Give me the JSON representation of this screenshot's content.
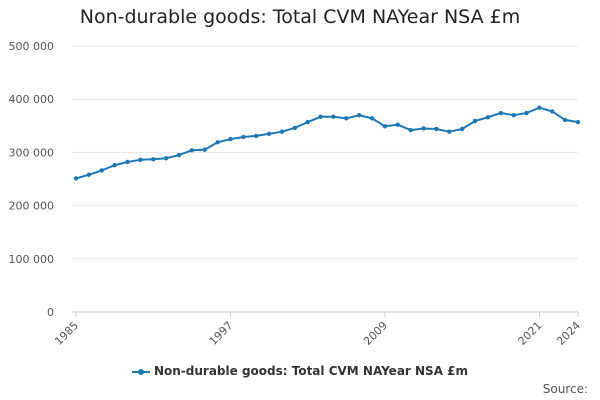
{
  "chart_data": {
    "type": "line",
    "title": "Non-durable goods: Total CVM NAYear NSA £m",
    "xlabel": "",
    "ylabel": "",
    "ylim": [
      0,
      500000
    ],
    "yticks": [
      0,
      100000,
      200000,
      300000,
      400000,
      500000
    ],
    "ytick_labels": [
      "0",
      "100 000",
      "200 000",
      "300 000",
      "400 000",
      "500 000"
    ],
    "xlim": [
      1985,
      2024
    ],
    "xticks": [
      1985,
      1997,
      2009,
      2021,
      2024
    ],
    "xtick_labels": [
      "1985",
      "1997",
      "2009",
      "2021",
      "2024"
    ],
    "grid": true,
    "legend_position": "bottom",
    "series": [
      {
        "name": "Non-durable goods: Total CVM NAYear NSA £m",
        "color": "#1f77b4",
        "x": [
          1985,
          1986,
          1987,
          1988,
          1989,
          1990,
          1991,
          1992,
          1993,
          1994,
          1995,
          1996,
          1997,
          1998,
          1999,
          2000,
          2001,
          2002,
          2003,
          2004,
          2005,
          2006,
          2007,
          2008,
          2009,
          2010,
          2011,
          2012,
          2013,
          2014,
          2015,
          2016,
          2017,
          2018,
          2019,
          2020,
          2021,
          2022,
          2023,
          2024
        ],
        "values": [
          251000,
          258000,
          266000,
          276000,
          282000,
          286000,
          287000,
          289000,
          295000,
          304000,
          305000,
          319000,
          325000,
          329000,
          331000,
          335000,
          339000,
          346000,
          357000,
          367000,
          367000,
          364000,
          370000,
          364000,
          349000,
          352000,
          342000,
          345000,
          344000,
          339000,
          344000,
          359000,
          366000,
          374000,
          370000,
          374000,
          384000,
          377000,
          361000,
          357000
        ]
      }
    ]
  },
  "source_label": "Source:"
}
